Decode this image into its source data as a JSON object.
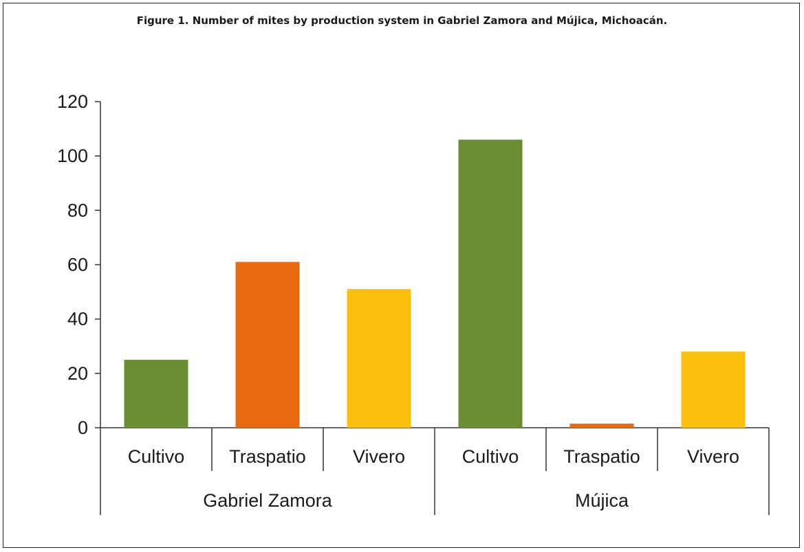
{
  "chart_data": {
    "type": "bar",
    "title": "Figure 1. Number of mites by production system in Gabriel Zamora and Mújica, Michoacán.",
    "xlabel": "",
    "ylabel": "",
    "ylim": [
      0,
      120
    ],
    "yticks": [
      "0",
      "20",
      "40",
      "60",
      "80",
      "100",
      "120"
    ],
    "grid": false,
    "groups": [
      {
        "name": "Gabriel Zamora",
        "bars": [
          {
            "category": "Cultivo",
            "value": 25,
            "color": "#6a8e32"
          },
          {
            "category": "Traspatio",
            "value": 61,
            "color": "#e8690f"
          },
          {
            "category": "Vivero",
            "value": 51,
            "color": "#fcbf0c"
          }
        ]
      },
      {
        "name": "Mújica",
        "bars": [
          {
            "category": "Cultivo",
            "value": 106,
            "color": "#6a8e32"
          },
          {
            "category": "Traspatio",
            "value": 1.5,
            "color": "#e8690f"
          },
          {
            "category": "Vivero",
            "value": 28,
            "color": "#fcbf0c"
          }
        ]
      }
    ]
  }
}
